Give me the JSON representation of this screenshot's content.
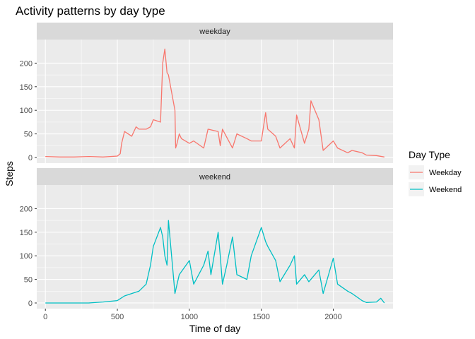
{
  "chart_data": {
    "type": "line",
    "title": "Activity patterns by day type",
    "xlabel": "Time of day",
    "ylabel": "Steps",
    "xlim": [
      -60,
      2415
    ],
    "ylim": [
      -12,
      250
    ],
    "x_ticks": [
      0,
      500,
      1000,
      1500,
      2000
    ],
    "y_ticks": [
      0,
      50,
      100,
      150,
      200
    ],
    "grid": true,
    "legend": {
      "title": "Day Type",
      "position": "right"
    },
    "panels": [
      {
        "label": "weekday",
        "series": "Weekday",
        "x": [
          0,
          100,
          200,
          300,
          400,
          500,
          520,
          530,
          550,
          600,
          630,
          650,
          700,
          730,
          750,
          800,
          815,
          830,
          845,
          855,
          900,
          905,
          915,
          930,
          945,
          1000,
          1030,
          1100,
          1130,
          1200,
          1215,
          1230,
          1300,
          1330,
          1400,
          1430,
          1500,
          1530,
          1545,
          1600,
          1630,
          1700,
          1730,
          1745,
          1800,
          1830,
          1845,
          1900,
          1930,
          2000,
          2030,
          2100,
          2130,
          2200,
          2230,
          2300,
          2355
        ],
        "y": [
          2,
          1,
          1,
          2,
          1,
          3,
          8,
          30,
          55,
          45,
          65,
          60,
          60,
          65,
          80,
          75,
          200,
          230,
          180,
          175,
          100,
          20,
          30,
          50,
          40,
          30,
          35,
          20,
          60,
          55,
          25,
          60,
          20,
          50,
          40,
          35,
          35,
          95,
          60,
          45,
          20,
          40,
          20,
          90,
          30,
          60,
          120,
          80,
          15,
          35,
          20,
          10,
          15,
          10,
          5,
          4,
          1
        ]
      },
      {
        "label": "weekend",
        "series": "Weekend",
        "x": [
          0,
          100,
          200,
          300,
          400,
          500,
          550,
          600,
          650,
          700,
          730,
          750,
          800,
          815,
          830,
          845,
          855,
          900,
          915,
          930,
          1000,
          1030,
          1100,
          1130,
          1150,
          1200,
          1215,
          1230,
          1260,
          1300,
          1330,
          1400,
          1430,
          1500,
          1530,
          1545,
          1600,
          1630,
          1700,
          1730,
          1745,
          1800,
          1830,
          1900,
          1930,
          2000,
          2030,
          2100,
          2130,
          2200,
          2230,
          2300,
          2330,
          2355
        ],
        "y": [
          0,
          0,
          0,
          0,
          2,
          5,
          15,
          20,
          25,
          40,
          80,
          120,
          160,
          140,
          100,
          80,
          175,
          20,
          40,
          60,
          90,
          40,
          80,
          110,
          60,
          150,
          100,
          40,
          80,
          140,
          60,
          50,
          100,
          160,
          130,
          120,
          90,
          45,
          80,
          100,
          40,
          60,
          45,
          70,
          20,
          95,
          40,
          25,
          20,
          5,
          1,
          2,
          10,
          0
        ]
      }
    ],
    "colors": {
      "Weekday": "#F8766D",
      "Weekend": "#00BFC4"
    }
  }
}
